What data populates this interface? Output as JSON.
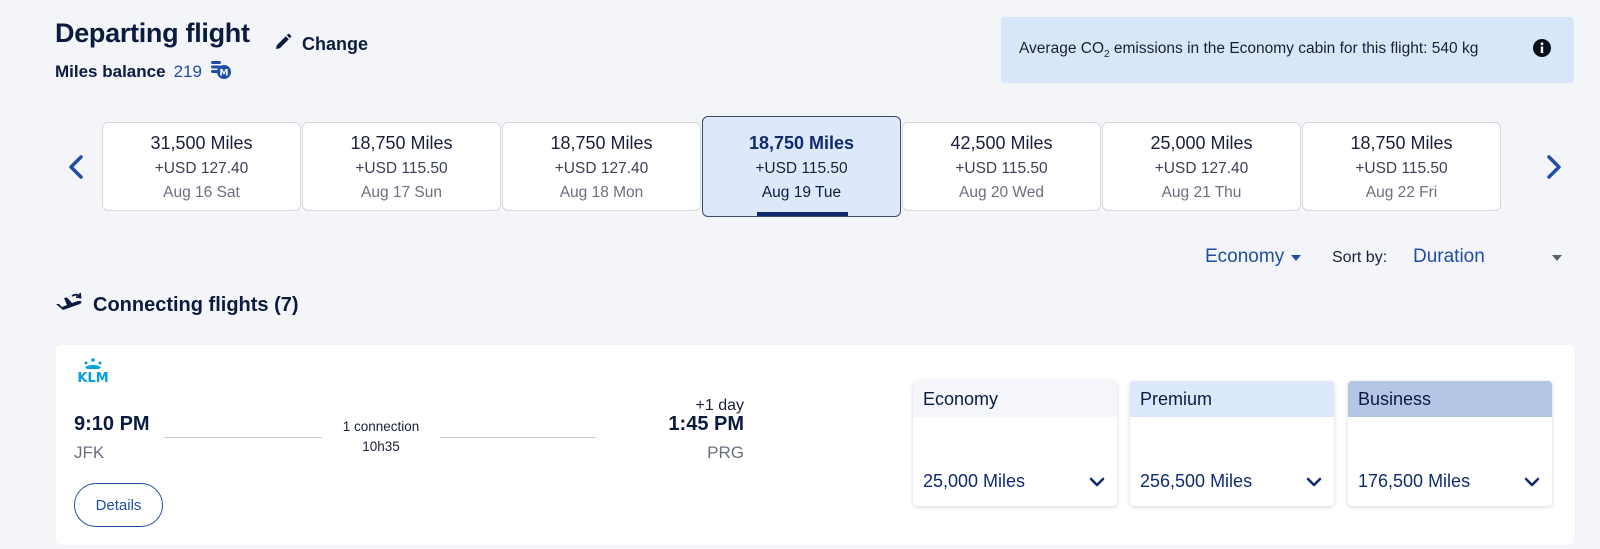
{
  "header": {
    "title": "Departing flight",
    "change_label": "Change",
    "miles_balance_label": "Miles balance",
    "miles_balance_value": "219"
  },
  "co2_notice": {
    "text_before": "Average CO",
    "subscript": "2",
    "text_after": " emissions in the Economy cabin for this flight: 540 kg"
  },
  "date_options": [
    {
      "miles": "31,500 Miles",
      "usd": "+USD 127.40",
      "date": "Aug 16 Sat"
    },
    {
      "miles": "18,750 Miles",
      "usd": "+USD 115.50",
      "date": "Aug 17 Sun"
    },
    {
      "miles": "18,750 Miles",
      "usd": "+USD 127.40",
      "date": "Aug 18 Mon"
    },
    {
      "miles": "18,750 Miles",
      "usd": "+USD 115.50",
      "date": "Aug 19 Tue",
      "selected": true
    },
    {
      "miles": "42,500 Miles",
      "usd": "+USD 115.50",
      "date": "Aug 20 Wed"
    },
    {
      "miles": "25,000 Miles",
      "usd": "+USD 127.40",
      "date": "Aug 21 Thu"
    },
    {
      "miles": "18,750 Miles",
      "usd": "+USD 115.50",
      "date": "Aug 22 Fri"
    }
  ],
  "filters": {
    "cabin": "Economy",
    "sort_label": "Sort by:",
    "sort_value": "Duration"
  },
  "section": {
    "title": "Connecting flights (7)"
  },
  "flight": {
    "airline": "KLM",
    "departure_time": "9:10 PM",
    "departure_airport": "JFK",
    "connections": "1 connection",
    "duration": "10h35",
    "day_offset": "+1 day",
    "arrival_time": "1:45 PM",
    "arrival_airport": "PRG",
    "details_label": "Details",
    "fares": [
      {
        "cabin": "Economy",
        "price": "25,000 Miles"
      },
      {
        "cabin": "Premium",
        "price": "256,500 Miles"
      },
      {
        "cabin": "Business",
        "price": "176,500 Miles"
      }
    ]
  },
  "colors": {
    "accent": "#1f4fa3",
    "navy": "#0b1b3f",
    "klm_blue": "#00a1de",
    "selected_bg": "#dde9fb",
    "co2_bg": "#d8e6fa"
  }
}
